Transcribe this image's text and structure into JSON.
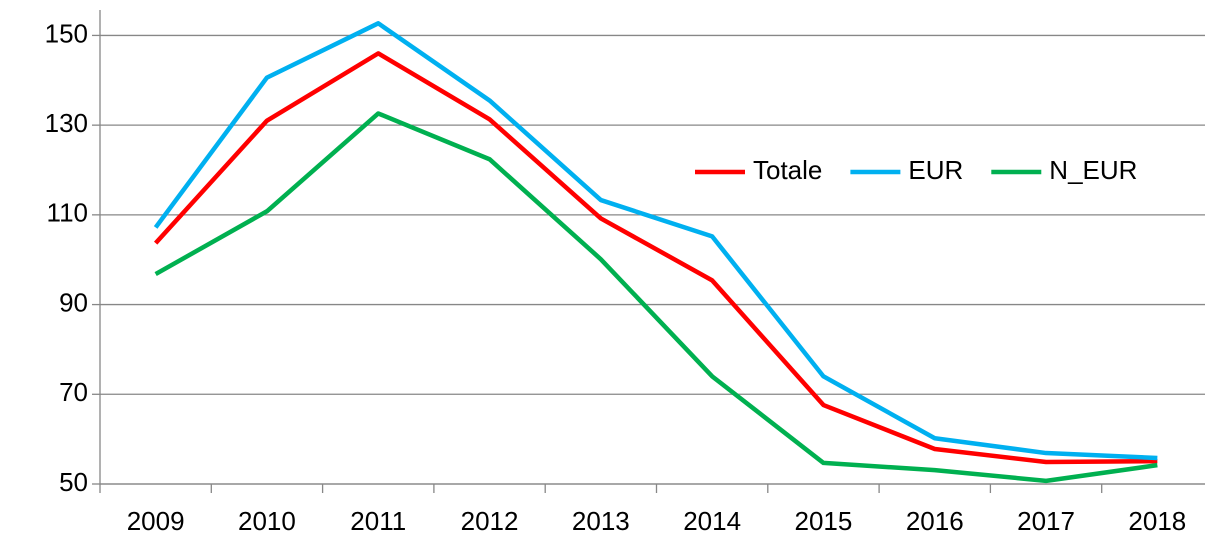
{
  "chart_data": {
    "type": "line",
    "categories": [
      "2009",
      "2010",
      "2011",
      "2012",
      "2013",
      "2014",
      "2015",
      "2016",
      "2017",
      "2018"
    ],
    "series": [
      {
        "name": "Totale",
        "color": "#ff0000",
        "values": [
          103.7,
          131,
          146,
          131.3,
          109.2,
          95.4,
          67.6,
          57.8,
          54.9,
          55.1
        ]
      },
      {
        "name": "EUR",
        "color": "#00b0f0",
        "values": [
          107.2,
          140.6,
          152.7,
          135.5,
          113.3,
          105.2,
          74,
          60.2,
          56.9,
          55.8
        ]
      },
      {
        "name": "N_EUR",
        "color": "#00b050",
        "values": [
          96.8,
          110.8,
          132.6,
          122.4,
          100.1,
          74,
          54.7,
          53.1,
          50.7,
          54.2
        ]
      }
    ],
    "ylim": [
      50,
      155
    ],
    "yticks": [
      50,
      70,
      90,
      110,
      130,
      150
    ],
    "grid": true,
    "legend": "right"
  }
}
